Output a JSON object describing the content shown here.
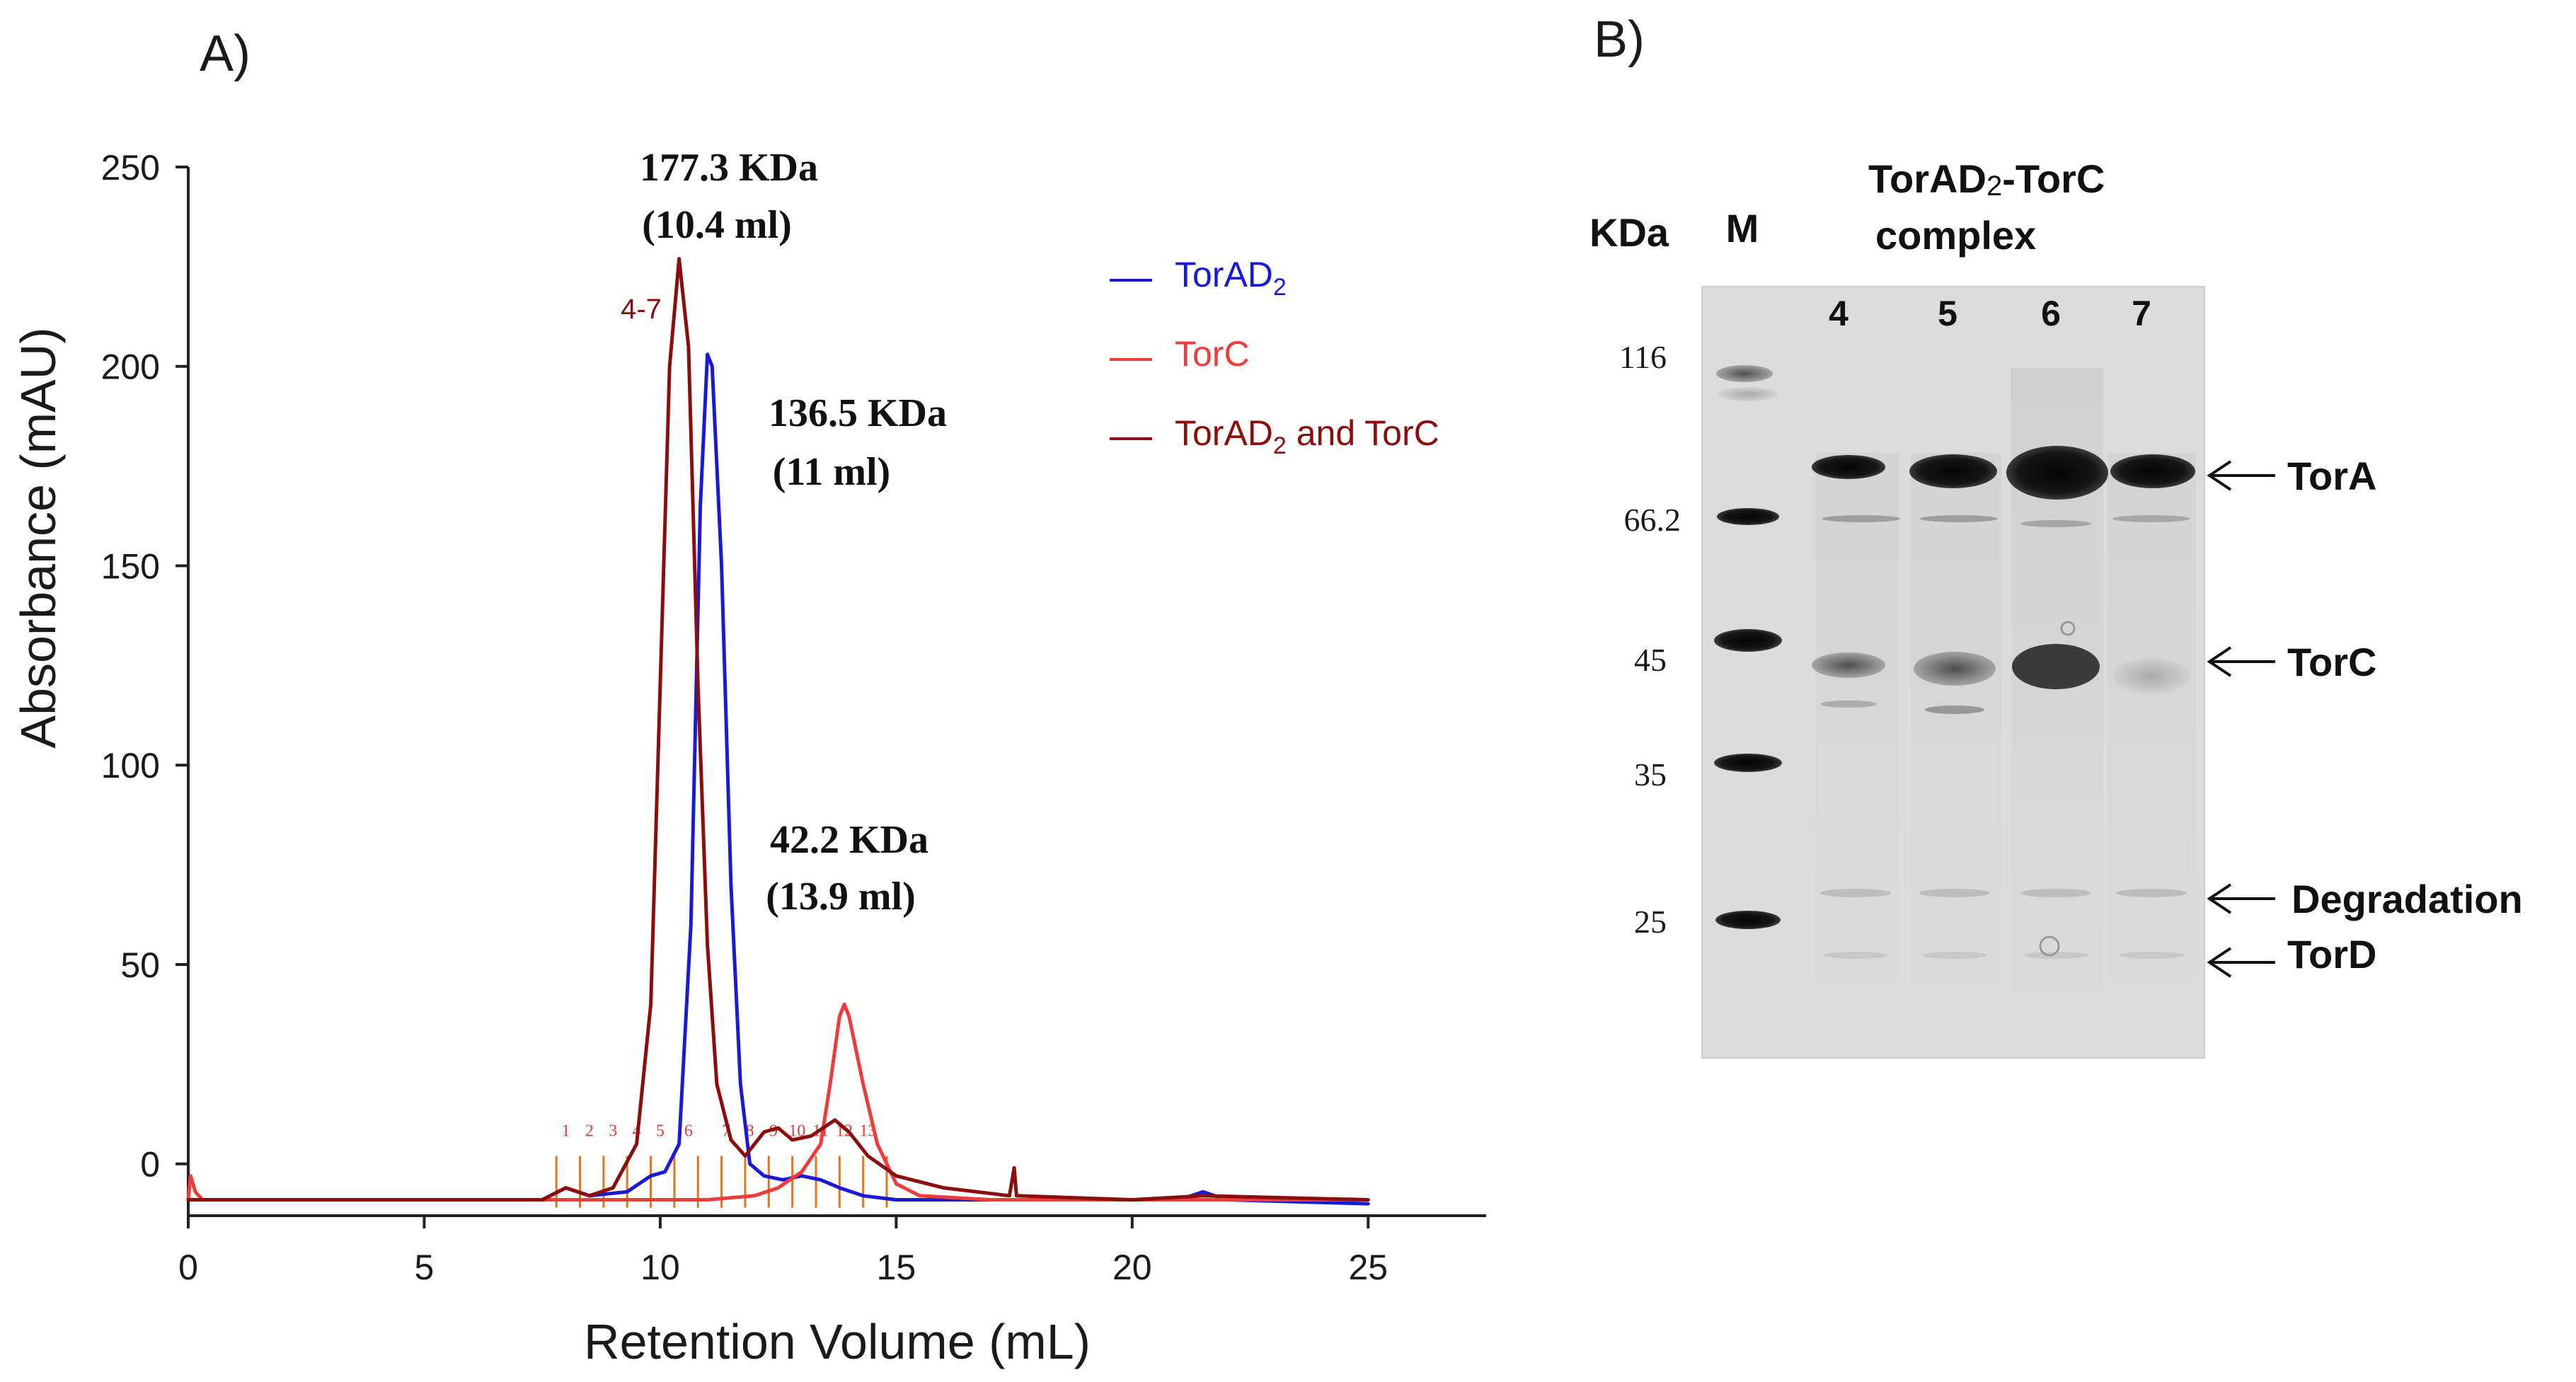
{
  "panels": {
    "a_label": "A)",
    "b_label": "B)"
  },
  "chart_data": {
    "type": "line",
    "title": "",
    "xlabel": "Retention Volume (mL)",
    "ylabel": "Absorbance (mAU)",
    "xlim": [
      0,
      27.5
    ],
    "ylim": [
      -13,
      250
    ],
    "x_ticks": [
      0,
      5,
      10,
      15,
      20,
      25
    ],
    "y_ticks": [
      0,
      50,
      100,
      150,
      200,
      250
    ],
    "legend_position": "top-right",
    "series": [
      {
        "name": "TorAD2",
        "name_main": "TorAD",
        "name_sub": "2",
        "name_suffix": "",
        "color": "#1a1ad6",
        "points": [
          [
            0,
            -9
          ],
          [
            0.3,
            -9
          ],
          [
            5,
            -9
          ],
          [
            7.5,
            -9
          ],
          [
            8.0,
            -6
          ],
          [
            8.5,
            -8
          ],
          [
            9.3,
            -7
          ],
          [
            9.8,
            -3
          ],
          [
            10.1,
            -2
          ],
          [
            10.4,
            5
          ],
          [
            10.65,
            60
          ],
          [
            10.85,
            165
          ],
          [
            11.0,
            203
          ],
          [
            11.1,
            200
          ],
          [
            11.3,
            150
          ],
          [
            11.5,
            70
          ],
          [
            11.7,
            20
          ],
          [
            11.9,
            0
          ],
          [
            12.2,
            -3
          ],
          [
            12.6,
            -4
          ],
          [
            13.0,
            -3
          ],
          [
            13.4,
            -4
          ],
          [
            13.8,
            -6
          ],
          [
            14.3,
            -8
          ],
          [
            15,
            -9
          ],
          [
            17.5,
            -9
          ],
          [
            21,
            -9
          ],
          [
            21.5,
            -7
          ],
          [
            22,
            -9
          ],
          [
            25,
            -10
          ]
        ]
      },
      {
        "name": "TorC",
        "name_main": "TorC",
        "name_sub": "",
        "name_suffix": "",
        "color": "#ef3b3b",
        "points": [
          [
            0,
            -9
          ],
          [
            0.05,
            -3
          ],
          [
            0.15,
            -7
          ],
          [
            0.3,
            -9
          ],
          [
            5,
            -9
          ],
          [
            8,
            -9
          ],
          [
            10,
            -9
          ],
          [
            11,
            -9
          ],
          [
            12,
            -8
          ],
          [
            12.5,
            -6
          ],
          [
            13.0,
            -2
          ],
          [
            13.4,
            5
          ],
          [
            13.6,
            20
          ],
          [
            13.8,
            37
          ],
          [
            13.9,
            40
          ],
          [
            14.0,
            37
          ],
          [
            14.3,
            20
          ],
          [
            14.6,
            5
          ],
          [
            15,
            -5
          ],
          [
            15.5,
            -8
          ],
          [
            17,
            -9
          ],
          [
            25,
            -9
          ]
        ]
      },
      {
        "name": "TorAD2 and TorC",
        "name_main": "TorAD",
        "name_sub": "2",
        "name_suffix": " and TorC",
        "color": "#8b0d0d",
        "points": [
          [
            0,
            -9
          ],
          [
            5,
            -9
          ],
          [
            7.5,
            -9
          ],
          [
            8.0,
            -6
          ],
          [
            8.5,
            -8
          ],
          [
            9.0,
            -6
          ],
          [
            9.5,
            5
          ],
          [
            9.8,
            40
          ],
          [
            10.0,
            120
          ],
          [
            10.2,
            200
          ],
          [
            10.4,
            227
          ],
          [
            10.6,
            205
          ],
          [
            10.8,
            120
          ],
          [
            11.0,
            55
          ],
          [
            11.2,
            20
          ],
          [
            11.5,
            6
          ],
          [
            11.8,
            2
          ],
          [
            12.2,
            8
          ],
          [
            12.5,
            9
          ],
          [
            12.8,
            6
          ],
          [
            13.2,
            7
          ],
          [
            13.7,
            11
          ],
          [
            14.0,
            8
          ],
          [
            14.4,
            2
          ],
          [
            15,
            -3
          ],
          [
            16,
            -6
          ],
          [
            17.4,
            -8
          ],
          [
            17.5,
            -1
          ],
          [
            17.55,
            -8
          ],
          [
            20,
            -9
          ],
          [
            21.5,
            -8
          ],
          [
            25,
            -9
          ]
        ]
      }
    ],
    "annotations": [
      {
        "line1": "177.3 KDa",
        "line2": "(10.4 ml)"
      },
      {
        "line1": "136.5 KDa",
        "line2": "(11 ml)"
      },
      {
        "line1": "42.2 KDa",
        "line2": "(13.9 ml)"
      }
    ],
    "peak_marker": "4-7",
    "fractions": [
      {
        "label": "1",
        "x": 8.0
      },
      {
        "label": "2",
        "x": 8.5
      },
      {
        "label": "3",
        "x": 9.0
      },
      {
        "label": "4",
        "x": 9.5
      },
      {
        "label": "5",
        "x": 10.0
      },
      {
        "label": "6",
        "x": 10.6
      },
      {
        "label": "7",
        "x": 11.4
      },
      {
        "label": "8",
        "x": 11.9
      },
      {
        "label": "9",
        "x": 12.4
      },
      {
        "label": "10",
        "x": 12.9
      },
      {
        "label": "11",
        "x": 13.4
      },
      {
        "label": "12",
        "x": 13.9
      },
      {
        "label": "13",
        "x": 14.4
      }
    ],
    "fraction_lines": [
      7.8,
      8.3,
      8.8,
      9.3,
      9.8,
      10.3,
      10.8,
      11.3,
      11.8,
      12.3,
      12.8,
      13.3,
      13.8,
      14.3,
      14.8
    ],
    "fraction_color": "#e8731c"
  },
  "gel": {
    "kda_label": "KDa",
    "marker_label": "M",
    "complex_title_main": "TorAD",
    "complex_title_sub": "2",
    "complex_title_rest": "-TorC",
    "complex_title_line2": "complex",
    "lanes": [
      "4",
      "5",
      "6",
      "7"
    ],
    "mw_markers": [
      "116",
      "66.2",
      "45",
      "35",
      "25"
    ],
    "bands": [
      "TorA",
      "TorC",
      "Degradation",
      "TorD"
    ]
  }
}
